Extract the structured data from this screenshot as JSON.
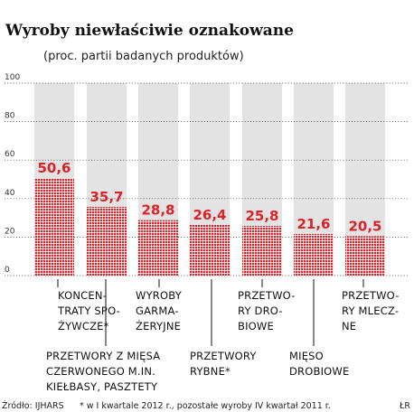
{
  "title": "Wyroby niewłaściwie oznakowane",
  "subtitle": "(proc. partii badanych produktów)",
  "footer": {
    "source": "Źródło: IJHARS",
    "note": "* w I kwartale 2012 r., pozostałe wyroby IV kwartał 2011 r.",
    "credit": "ŁR"
  },
  "colors": {
    "bar": "#d8232a",
    "track": "#e3e3e3",
    "grid": "#222222",
    "value_label": "#d8232a"
  },
  "chart_data": {
    "type": "bar",
    "title": "Wyroby niewłaściwie oznakowane",
    "subtitle": "(proc. partii badanych produktów)",
    "ylim": [
      0,
      100
    ],
    "yticks": [
      0,
      20,
      40,
      60,
      80,
      100
    ],
    "ytick_labels": [
      "0",
      "20",
      "40",
      "60",
      "80",
      "100"
    ],
    "grid": true,
    "background_bar_max": 100,
    "categories": [
      "KONCENTRATY SPOŻYWCZE*",
      "PRZETWORY Z MIĘSA CZERWONEGO M.IN. KIEŁBASY, PASZTETY",
      "WYROBY GARMAŻERYJNE",
      "PRZETWORY RYBNE*",
      "PRZETWORY DROBIOWE",
      "MIĘSO DROBIOWE",
      "PRZETWORY MLECZNE"
    ],
    "category_lines": [
      [
        "KONCEN-",
        "TRATY SPO-",
        "ŻYWCZE*"
      ],
      [
        "PRZETWORY Z MIĘSA",
        "CZERWONEGO M.IN.",
        "KIEŁBASY, PASZTETY"
      ],
      [
        "WYROBY",
        "GARMA-",
        "ŻERYJNE"
      ],
      [
        "PRZETWORY",
        "RYBNE*"
      ],
      [
        "PRZETWO-",
        "RY DRO-",
        "BIOWE"
      ],
      [
        "MIĘSO",
        "DROBIOWE"
      ],
      [
        "PRZETWO-",
        "RY MLECZ-",
        "NE"
      ]
    ],
    "values": [
      50.6,
      35.7,
      28.8,
      26.4,
      25.8,
      21.6,
      20.5
    ],
    "value_labels": [
      "50,6",
      "35,7",
      "28,8",
      "26,4",
      "25,8",
      "21,6",
      "20,5"
    ]
  }
}
